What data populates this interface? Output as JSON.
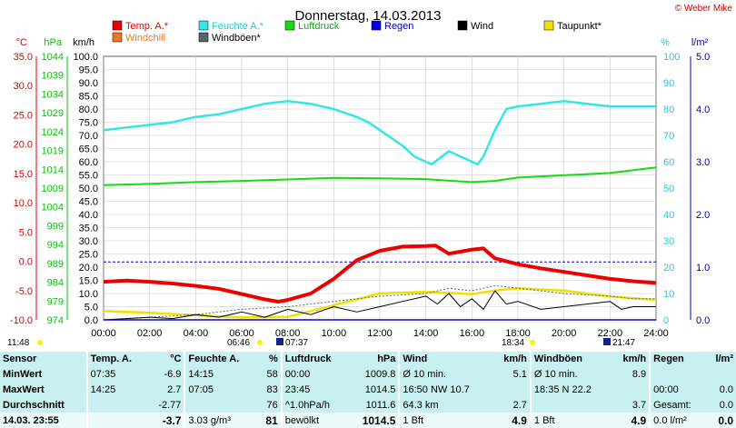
{
  "title": "Donnerstag, 14.03.2013",
  "credit": "© Weber Mike",
  "axis_units": {
    "temp": "°C",
    "pressure": "hPa",
    "speed": "km/h",
    "percent": "%",
    "rain": "l/m²"
  },
  "legend": [
    {
      "label": "Temp. A.*",
      "color": "#ee0000"
    },
    {
      "label": "Feuchte A.*",
      "color": "#33e6e6"
    },
    {
      "label": "Luftdruck",
      "color": "#11dd11"
    },
    {
      "label": "Regen",
      "color": "#0000ee"
    },
    {
      "label": "Wind",
      "color": "#000000"
    },
    {
      "label": "Taupunkt*",
      "color": "#f0e000"
    },
    {
      "label": "Windchill",
      "color": "#ee7722"
    },
    {
      "label": "Windböen*",
      "color": "#556666"
    }
  ],
  "chart_data": {
    "type": "line",
    "x_ticks": [
      "00:00",
      "02:00",
      "04:00",
      "06:00",
      "08:00",
      "10:00",
      "12:00",
      "14:00",
      "16:00",
      "18:00",
      "20:00",
      "22:00",
      "24:00"
    ],
    "x_range": [
      0,
      24
    ],
    "axes": {
      "temp_ticks": [
        "35.0",
        "30.0",
        "25.0",
        "20.0",
        "15.0",
        "10.0",
        "5.0",
        "0.0",
        "-5.0",
        "-10.0"
      ],
      "temp_range": [
        -10,
        35
      ],
      "pressure_ticks": [
        "1044",
        "1039",
        "1034",
        "1029",
        "1024",
        "1019",
        "1014",
        "1009",
        "1004",
        "999",
        "994",
        "989",
        "984",
        "979",
        "974"
      ],
      "pressure_range": [
        974,
        1044
      ],
      "speed_ticks": [
        "100.0",
        "95.0",
        "90.0",
        "85.0",
        "80.0",
        "75.0",
        "70.0",
        "65.0",
        "60.0",
        "55.0",
        "50.0",
        "45.0",
        "40.0",
        "35.0",
        "30.0",
        "25.0",
        "20.0",
        "15.0",
        "10.0",
        "5.0",
        "0.0"
      ],
      "speed_range": [
        0,
        100
      ],
      "percent_ticks": [
        "100",
        "90",
        "80",
        "70",
        "60",
        "50",
        "40",
        "30",
        "20",
        "10",
        "0"
      ],
      "percent_range": [
        0,
        100
      ],
      "rain_ticks": [
        "5.0",
        "4.0",
        "3.0",
        "2.0",
        "1.0",
        "0.0"
      ],
      "rain_range": [
        0,
        5
      ]
    },
    "series": [
      {
        "name": "Feuchte A.*",
        "unit": "%",
        "x": [
          0,
          1,
          2,
          3,
          4,
          5,
          6,
          7,
          8,
          9,
          10,
          11,
          11.5,
          12,
          12.5,
          13,
          13.5,
          14,
          14.25,
          15,
          15.5,
          16,
          16.25,
          16.5,
          17,
          17.5,
          18,
          19,
          20,
          21,
          22,
          23,
          24
        ],
        "y": [
          72,
          73,
          74,
          75,
          77,
          78,
          80,
          82,
          83,
          82,
          80,
          77,
          75,
          72,
          69,
          66,
          62,
          60,
          59,
          64,
          62,
          60,
          59,
          62,
          72,
          80,
          81,
          82,
          83,
          82,
          81,
          81,
          81
        ]
      },
      {
        "name": "Luftdruck",
        "unit": "hPa",
        "x": [
          0,
          2,
          4,
          6,
          8,
          10,
          12,
          14,
          16,
          17,
          18,
          20,
          22,
          24
        ],
        "y": [
          1009.8,
          1010.1,
          1010.6,
          1010.9,
          1011.3,
          1011.7,
          1011.6,
          1011.4,
          1010.6,
          1010.9,
          1011.8,
          1012.4,
          1013.0,
          1014.5
        ]
      },
      {
        "name": "Temp. A.*",
        "unit": "°C",
        "x": [
          0,
          1,
          2,
          3,
          4,
          5,
          6,
          7,
          7.583,
          8,
          9,
          10,
          11,
          12,
          13,
          14,
          14.417,
          15,
          16,
          16.5,
          17,
          18,
          19,
          20,
          21,
          22,
          23,
          24
        ],
        "y": [
          -3.5,
          -3.3,
          -3.5,
          -3.8,
          -4.2,
          -4.7,
          -5.6,
          -6.5,
          -6.9,
          -6.6,
          -5.5,
          -3.0,
          0.2,
          1.8,
          2.5,
          2.6,
          2.7,
          1.3,
          2.0,
          2.2,
          0.5,
          -0.5,
          -1.2,
          -1.8,
          -2.4,
          -3.0,
          -3.4,
          -3.7
        ]
      },
      {
        "name": "Taupunkt*",
        "unit": "°C",
        "x": [
          0,
          2,
          4,
          6,
          8,
          10,
          12,
          14,
          15,
          16,
          17,
          18,
          20,
          22,
          24
        ],
        "y": [
          -8.5,
          -8.8,
          -9.2,
          -9.6,
          -9.5,
          -7.5,
          -5.5,
          -5.2,
          -5.4,
          -5.6,
          -5.0,
          -4.6,
          -5.0,
          -6.0,
          -6.6
        ]
      },
      {
        "name": "Wind",
        "unit": "km/h",
        "x": [
          0,
          1,
          2,
          3,
          4,
          5,
          6,
          7,
          8,
          9,
          10,
          11,
          12,
          13,
          14,
          14.5,
          15,
          15.5,
          16,
          16.5,
          17,
          17.5,
          18,
          19,
          20,
          21,
          22,
          22.5,
          23,
          24
        ],
        "y": [
          0,
          0.5,
          1,
          0.5,
          2,
          1,
          3,
          1,
          4,
          2,
          5,
          3,
          5,
          7,
          9,
          6,
          10,
          5,
          8,
          4,
          11,
          6,
          7,
          4,
          5,
          6,
          7,
          4,
          5,
          5
        ]
      },
      {
        "name": "Windböen*",
        "unit": "km/h",
        "x": [
          0,
          2,
          4,
          6,
          8,
          10,
          12,
          14,
          15,
          16,
          17,
          18,
          20,
          22,
          23,
          24
        ],
        "y": [
          0,
          1,
          2,
          4,
          5,
          7,
          9,
          10,
          12,
          11,
          13,
          12,
          10,
          9,
          8,
          8
        ]
      },
      {
        "name": "Regen",
        "unit": "l/m²",
        "x": [
          0,
          24
        ],
        "y": [
          0,
          0
        ]
      }
    ],
    "gust_threshold_kmh": 22
  },
  "sun_labels": {
    "left": "11:48",
    "sunrise": "06:46",
    "moon1": "07:37",
    "sunset": "18:34",
    "moon2": "21:47"
  },
  "table": {
    "header": [
      "Sensor",
      "Temp. A.",
      "°C",
      "Feuchte A.",
      "%",
      "Luftdruck",
      "hPa",
      "Wind",
      "km/h",
      "Windböen",
      "km/h",
      "Regen",
      "l/m²"
    ],
    "rows": [
      [
        "MinWert",
        "07:35",
        "-6.9",
        "14:15",
        "58",
        "00:00",
        "1009.8",
        "Ø 10 min.",
        "5.1",
        "Ø 10 min.",
        "8.9",
        "",
        ""
      ],
      [
        "MaxWert",
        "14:25",
        "2.7",
        "07:05",
        "83",
        "23:45",
        "1014.5",
        "16:50   NW 10.7",
        "",
        "18:35      N 22.2",
        "",
        "00:00",
        "0.0"
      ],
      [
        "Durchschnitt",
        "",
        "-2.77",
        "",
        "76",
        "^1.0hPa/h",
        "1011.6",
        "64.3 km",
        "2.7",
        "",
        "3.7",
        "Gesamt:",
        "0.0"
      ],
      [
        "14.03.  23:55",
        "",
        "-3.7",
        "3.03 g/m³",
        "81",
        "bewölkt",
        "1014.5",
        "1 Bft",
        "4.9",
        "1 Bft",
        "4.9",
        "0.0 l/m²",
        "0.0"
      ]
    ]
  }
}
